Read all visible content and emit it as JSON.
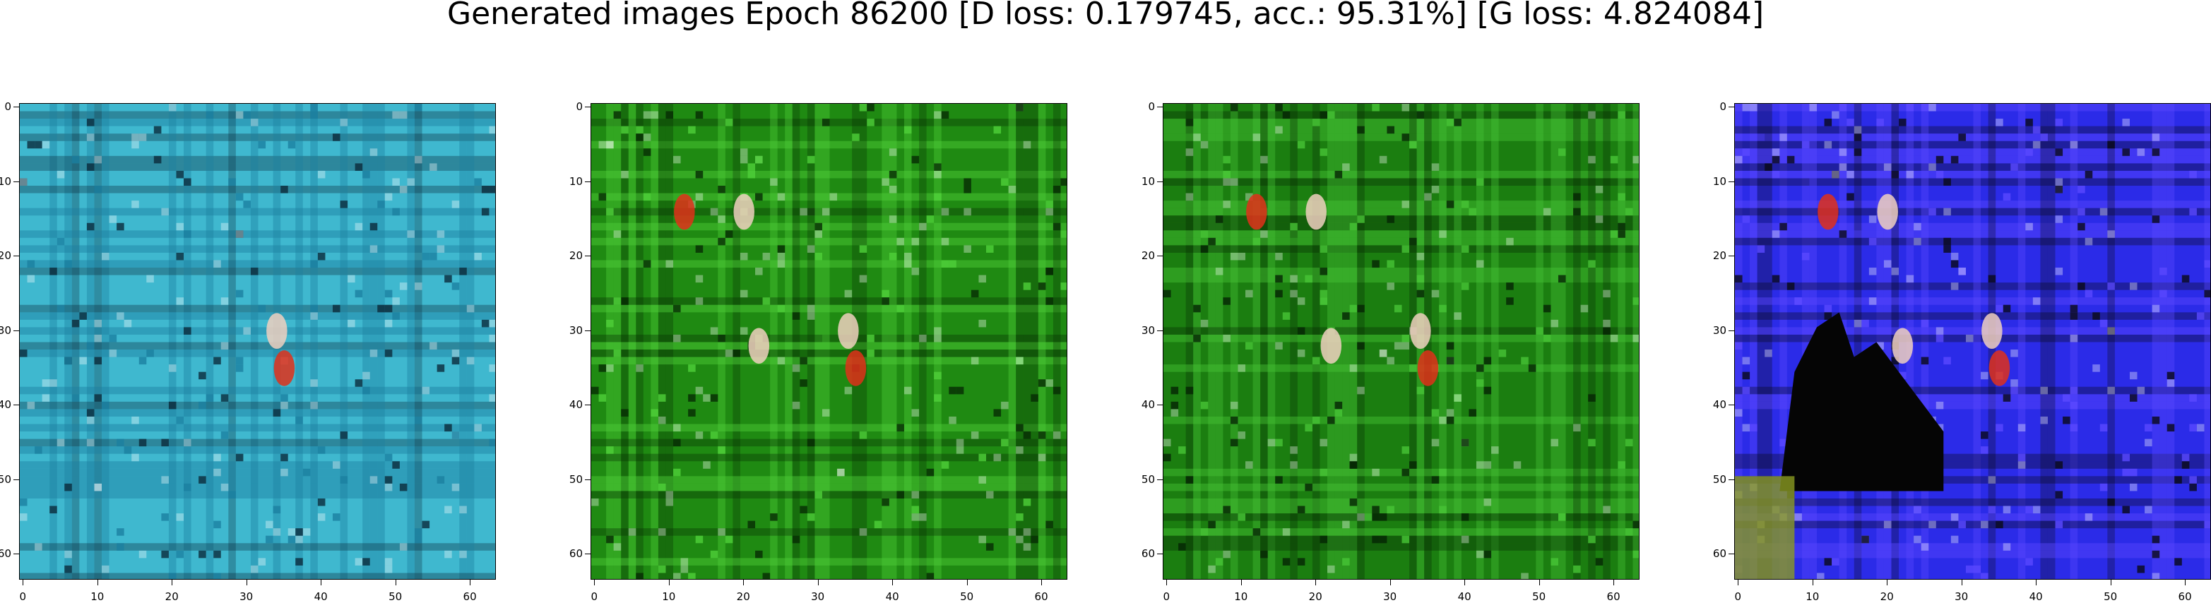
{
  "title": "Generated images Epoch 86200 [D loss: 0.179745, acc.: 95.31%] [G loss: 4.824084]",
  "panels": [
    {
      "name": "generated-image-1",
      "base": "#3fb8cf",
      "accent": "#1c7fa0",
      "dark": "#0b2a3b"
    },
    {
      "name": "generated-image-2",
      "base": "#1f8a12",
      "accent": "#4fcf3a",
      "dark": "#062b04"
    },
    {
      "name": "generated-image-3",
      "base": "#1b7e10",
      "accent": "#47c436",
      "dark": "#052404"
    },
    {
      "name": "generated-image-4",
      "base": "#2b2be8",
      "accent": "#5a48ff",
      "dark": "#0a0a18"
    }
  ],
  "ticks": {
    "x": [
      "0",
      "10",
      "20",
      "30",
      "40",
      "50",
      "60"
    ],
    "y": [
      "0",
      "10",
      "20",
      "30",
      "40",
      "50",
      "60"
    ]
  }
}
